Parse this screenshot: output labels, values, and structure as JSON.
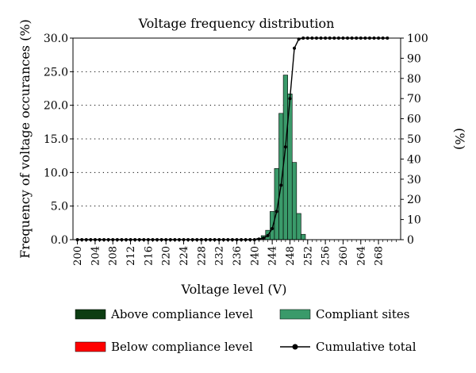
{
  "chart_data": {
    "type": "bar",
    "title": "Voltage frequency distribution",
    "xlabel": "Voltage level (V)",
    "ylabel": "Frequency of voltage occurances (%)",
    "y2label": "(%)",
    "xlim": [
      199,
      273
    ],
    "ylim": [
      0,
      30
    ],
    "y2lim": [
      0,
      100
    ],
    "x_ticks": [
      "200",
      "204",
      "208",
      "212",
      "216",
      "220",
      "224",
      "228",
      "232",
      "236",
      "240",
      "244",
      "248",
      "252",
      "256",
      "260",
      "264",
      "268"
    ],
    "y_ticks": [
      "0.0",
      "5.0",
      "10.0",
      "15.0",
      "20.0",
      "25.0",
      "30.0"
    ],
    "y2_ticks": [
      "0",
      "10",
      "20",
      "30",
      "40",
      "50",
      "60",
      "70",
      "80",
      "90",
      "100"
    ],
    "grid": "horizontal dotted",
    "legend_position": "bottom",
    "series": [
      {
        "name": "Compliant sites",
        "type": "bar",
        "color": "#3a9a6a",
        "x": [
          241,
          242,
          243,
          244,
          245,
          246,
          247,
          248,
          249,
          250,
          251
        ],
        "values": [
          0.2,
          0.6,
          1.4,
          4.2,
          10.6,
          18.8,
          24.5,
          21.7,
          11.5,
          3.9,
          0.8
        ]
      },
      {
        "name": "Above compliance level",
        "type": "bar",
        "color": "#0d3d12",
        "x": [],
        "values": []
      },
      {
        "name": "Below compliance level",
        "type": "bar",
        "color": "#ff0000",
        "x": [],
        "values": []
      },
      {
        "name": "Cumulative total",
        "type": "line",
        "axis": "right",
        "color": "#000000",
        "x": [
          200,
          201,
          202,
          203,
          204,
          205,
          206,
          207,
          208,
          209,
          210,
          211,
          212,
          213,
          214,
          215,
          216,
          217,
          218,
          219,
          220,
          221,
          222,
          223,
          224,
          225,
          226,
          227,
          228,
          229,
          230,
          231,
          232,
          233,
          234,
          235,
          236,
          237,
          238,
          239,
          240,
          241,
          242,
          243,
          244,
          245,
          246,
          247,
          248,
          249,
          250,
          251,
          252,
          253,
          254,
          255,
          256,
          257,
          258,
          259,
          260,
          261,
          262,
          263,
          264,
          265,
          266,
          267,
          268,
          269,
          270
        ],
        "values": [
          0,
          0,
          0,
          0,
          0,
          0,
          0,
          0,
          0,
          0,
          0,
          0,
          0,
          0,
          0,
          0,
          0,
          0,
          0,
          0,
          0,
          0,
          0,
          0,
          0,
          0,
          0,
          0,
          0,
          0,
          0,
          0,
          0,
          0,
          0,
          0,
          0,
          0,
          0,
          0,
          0,
          0.3,
          0.8,
          2,
          5.5,
          14,
          27,
          46,
          70,
          95,
          99.5,
          100,
          100,
          100,
          100,
          100,
          100,
          100,
          100,
          100,
          100,
          100,
          100,
          100,
          100,
          100,
          100,
          100,
          100,
          100,
          100
        ]
      }
    ]
  }
}
